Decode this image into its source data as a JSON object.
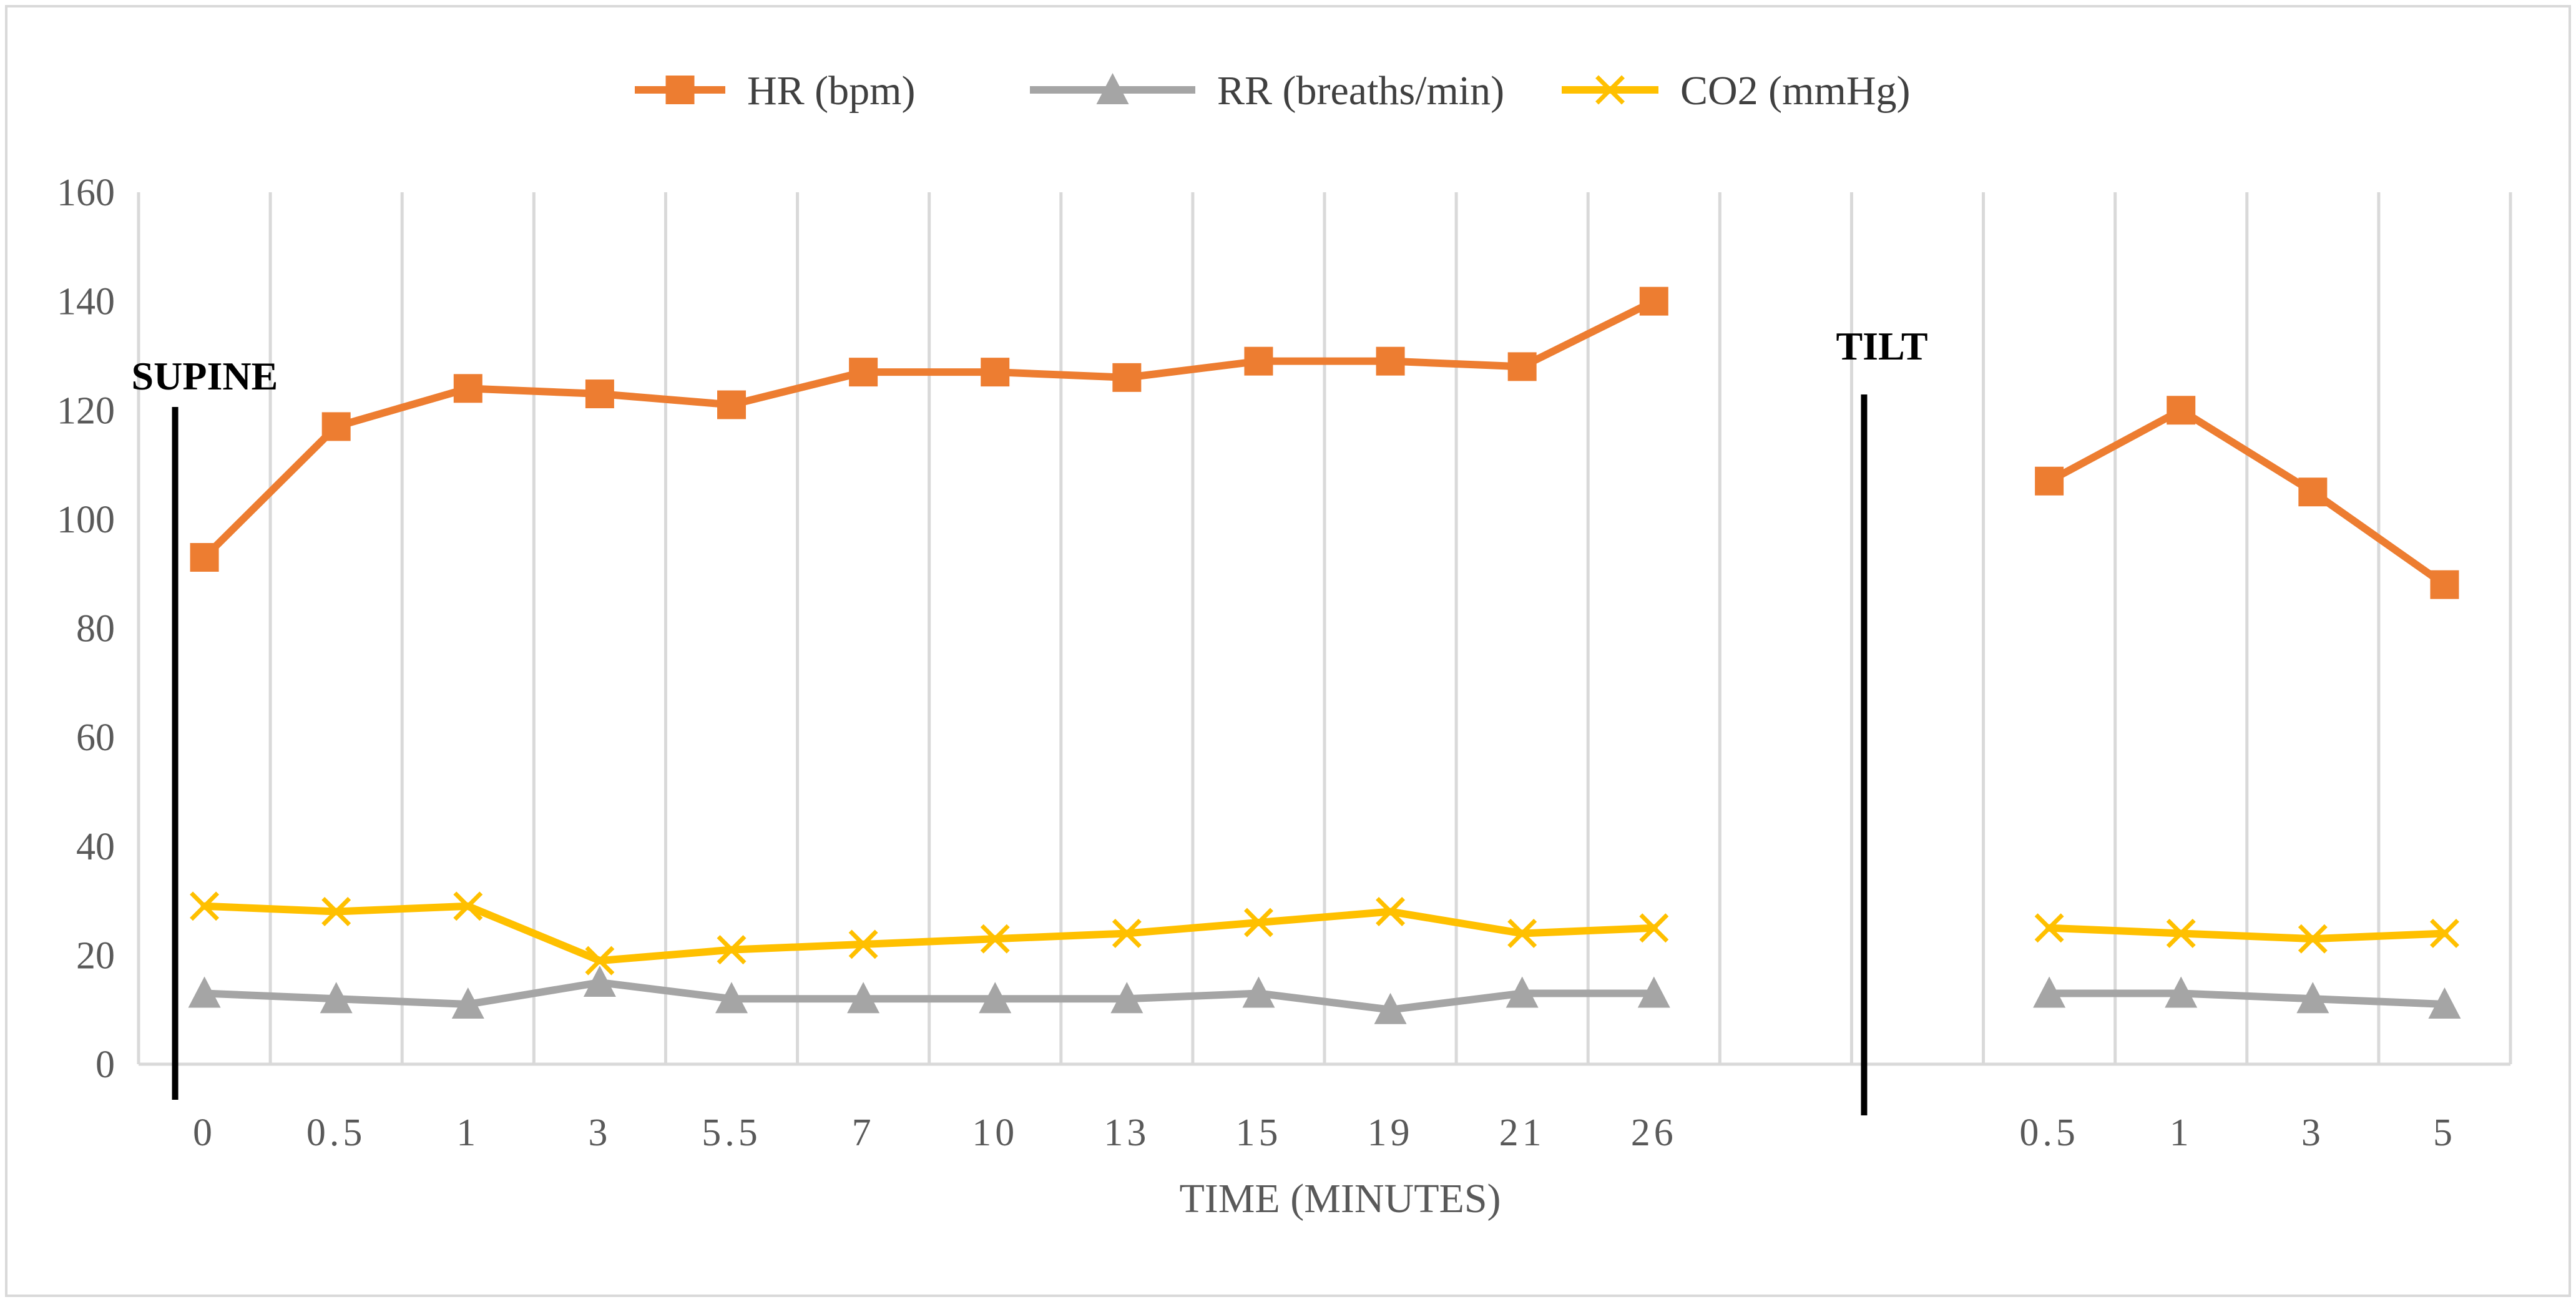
{
  "chart_data": {
    "type": "line",
    "title": "",
    "xlabel": "TIME (MINUTES)",
    "ylabel": "",
    "ylim": [
      0,
      160
    ],
    "yticks": [
      0,
      20,
      40,
      60,
      80,
      100,
      120,
      140,
      160
    ],
    "grid": "vertical",
    "legend": "top-center",
    "categories": [
      "0",
      "0.5",
      "1",
      "3",
      "5.5",
      "7",
      "10",
      "13",
      "15",
      "19",
      "21",
      "26",
      "",
      "",
      "0.5",
      "1",
      "3",
      "5"
    ],
    "series": [
      {
        "name": "HR (bpm)",
        "color": "#ED7D31",
        "marker": "square",
        "values": [
          93,
          117,
          124,
          123,
          121,
          127,
          127,
          126,
          129,
          129,
          128,
          140,
          null,
          null,
          107,
          120,
          105,
          88
        ]
      },
      {
        "name": "RR (breaths/min)",
        "color": "#A5A5A5",
        "marker": "triangle",
        "values": [
          13,
          12,
          11,
          15,
          12,
          12,
          12,
          12,
          13,
          10,
          13,
          13,
          null,
          null,
          13,
          13,
          12,
          11
        ]
      },
      {
        "name": "CO2 (mmHg)",
        "color": "#FFC000",
        "marker": "x",
        "values": [
          29,
          28,
          29,
          19,
          21,
          22,
          23,
          24,
          26,
          28,
          24,
          25,
          null,
          null,
          25,
          24,
          23,
          24
        ]
      }
    ],
    "annotations": [
      {
        "text": "SUPINE",
        "category_index": 0
      },
      {
        "text": "TILT",
        "category_index": 12.5
      }
    ]
  }
}
